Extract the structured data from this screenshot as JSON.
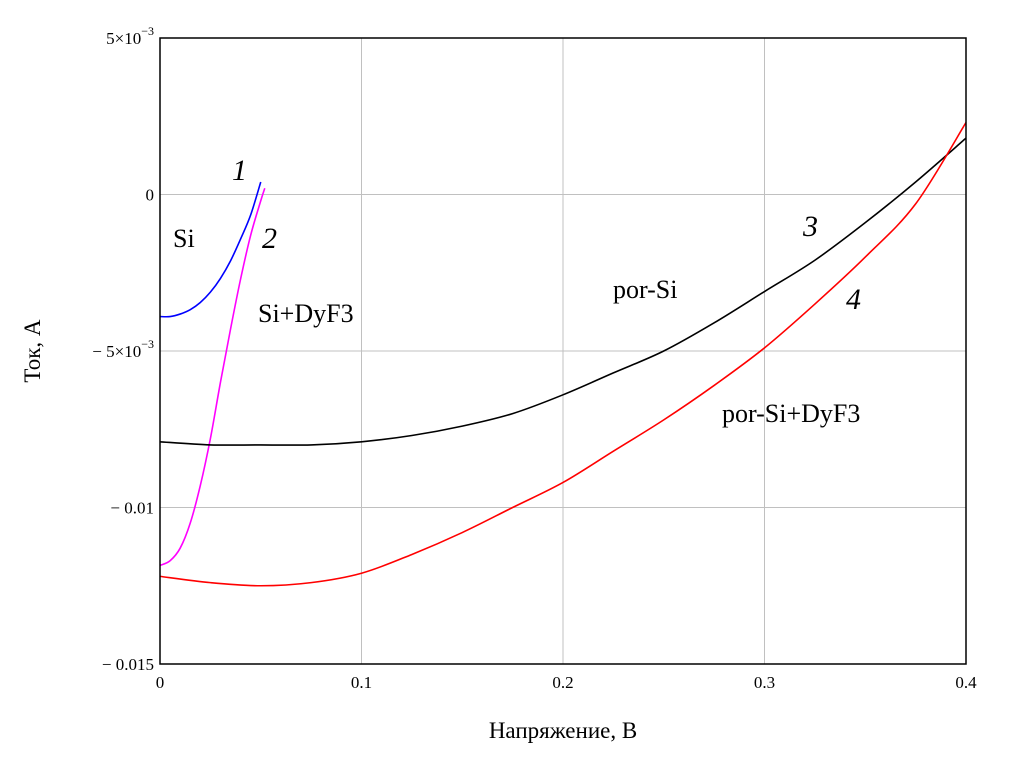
{
  "chart_data": {
    "type": "line",
    "xlabel": "Напряжение, В",
    "ylabel": "Ток, А",
    "xlim": [
      0,
      0.4
    ],
    "ylim": [
      -0.015,
      0.005
    ],
    "grid": true,
    "x_ticks": [
      {
        "value": 0,
        "label": "0"
      },
      {
        "value": 0.1,
        "label": "0.1"
      },
      {
        "value": 0.2,
        "label": "0.2"
      },
      {
        "value": 0.3,
        "label": "0.3"
      },
      {
        "value": 0.4,
        "label": "0.4"
      }
    ],
    "y_ticks": [
      {
        "value": 0.005,
        "mant": "5×10",
        "exp": "−3"
      },
      {
        "value": 0,
        "mant": "0",
        "exp": ""
      },
      {
        "value": -0.005,
        "mant": "− 5×10",
        "exp": "−3"
      },
      {
        "value": -0.01,
        "mant": "− 0.01",
        "exp": ""
      },
      {
        "value": -0.015,
        "mant": "− 0.015",
        "exp": ""
      }
    ],
    "series": [
      {
        "name": "Si",
        "number": "1",
        "color": "#0000ff",
        "x": [
          0,
          0.005,
          0.01,
          0.015,
          0.02,
          0.025,
          0.03,
          0.035,
          0.04,
          0.045,
          0.05
        ],
        "y": [
          -0.0039,
          -0.0039,
          -0.00382,
          -0.00368,
          -0.00345,
          -0.00312,
          -0.00268,
          -0.00212,
          -0.00142,
          -0.00065,
          0.0004
        ]
      },
      {
        "name": "Si+DyF3",
        "number": "2",
        "color": "#ff00ff",
        "x": [
          0,
          0.005,
          0.01,
          0.015,
          0.02,
          0.025,
          0.03,
          0.035,
          0.04,
          0.045,
          0.05,
          0.052
        ],
        "y": [
          -0.01185,
          -0.0117,
          -0.0113,
          -0.0105,
          -0.0093,
          -0.0078,
          -0.006,
          -0.0043,
          -0.0027,
          -0.0013,
          -0.0002,
          0.0002
        ]
      },
      {
        "name": "por-Si",
        "number": "3",
        "color": "#000000",
        "x": [
          0,
          0.025,
          0.05,
          0.075,
          0.1,
          0.125,
          0.15,
          0.175,
          0.2,
          0.225,
          0.25,
          0.275,
          0.3,
          0.325,
          0.35,
          0.375,
          0.4
        ],
        "y": [
          -0.0079,
          -0.008,
          -0.008,
          -0.008,
          -0.0079,
          -0.0077,
          -0.0074,
          -0.007,
          -0.0064,
          -0.0057,
          -0.005,
          -0.0041,
          -0.0031,
          -0.0021,
          -0.0009,
          0.0004,
          0.0018
        ]
      },
      {
        "name": "por-Si+DyF3",
        "number": "4",
        "color": "#ff0000",
        "x": [
          0,
          0.025,
          0.05,
          0.075,
          0.1,
          0.125,
          0.15,
          0.175,
          0.2,
          0.225,
          0.25,
          0.275,
          0.3,
          0.325,
          0.35,
          0.375,
          0.4
        ],
        "y": [
          -0.0122,
          -0.0124,
          -0.0125,
          -0.0124,
          -0.0121,
          -0.0115,
          -0.0108,
          -0.01,
          -0.0092,
          -0.0082,
          -0.0072,
          -0.0061,
          -0.0049,
          -0.0035,
          -0.002,
          -0.0003,
          0.0023
        ]
      }
    ]
  }
}
